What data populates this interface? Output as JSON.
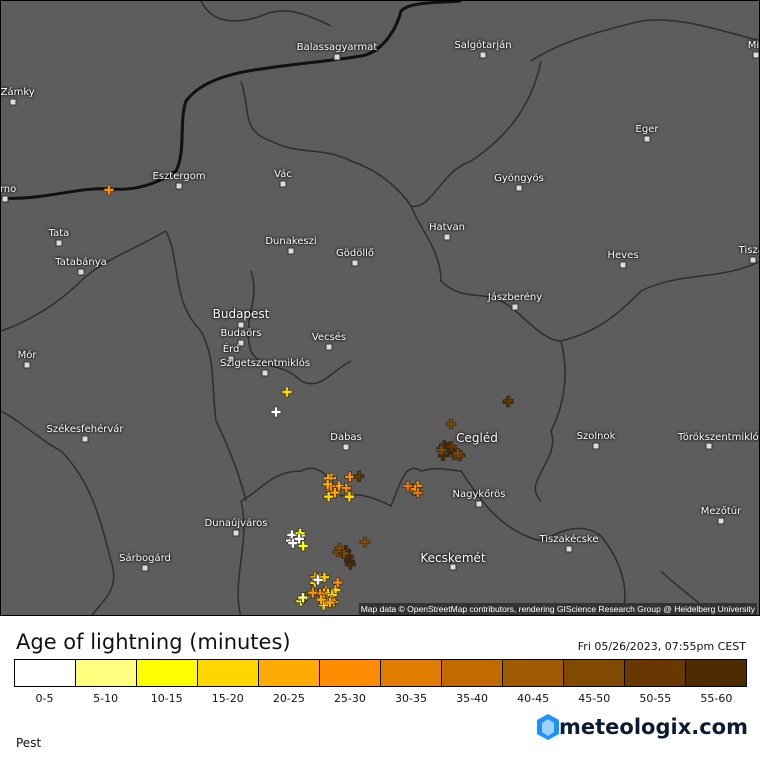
{
  "map": {
    "cities": [
      {
        "name": "Balassagyarmat",
        "big": false
      },
      {
        "name": "Salgótarján",
        "big": false
      },
      {
        "name": "Mis",
        "big": false
      },
      {
        "name": "é Zámky",
        "big": false
      },
      {
        "name": "Eger",
        "big": false
      },
      {
        "name": "Esztergom",
        "big": false
      },
      {
        "name": "Vác",
        "big": false
      },
      {
        "name": "Gyöngyös",
        "big": false
      },
      {
        "name": "árno",
        "big": false
      },
      {
        "name": "Tata",
        "big": false
      },
      {
        "name": "Dunakeszi",
        "big": false
      },
      {
        "name": "Gödöllő",
        "big": false
      },
      {
        "name": "Hatvan",
        "big": false
      },
      {
        "name": "Tatabánya",
        "big": false
      },
      {
        "name": "Heves",
        "big": false
      },
      {
        "name": "Tiszaf",
        "big": false
      },
      {
        "name": "Budapest",
        "big": true
      },
      {
        "name": "Jászberény",
        "big": false
      },
      {
        "name": "Budaörs",
        "big": false
      },
      {
        "name": "Mór",
        "big": false
      },
      {
        "name": "Érd",
        "big": false
      },
      {
        "name": "Vecsés",
        "big": false
      },
      {
        "name": "Szigetszentmiklós",
        "big": false
      },
      {
        "name": "Székesfehérvár",
        "big": false
      },
      {
        "name": "Dabas",
        "big": false
      },
      {
        "name": "Cegléd",
        "big": true
      },
      {
        "name": "Szolnok",
        "big": false
      },
      {
        "name": "Törökszentmiklós",
        "big": false
      },
      {
        "name": "Nagykőrös",
        "big": false
      },
      {
        "name": "Mezőtúr",
        "big": false
      },
      {
        "name": "Dunaújváros",
        "big": false
      },
      {
        "name": "Tiszakécske",
        "big": false
      },
      {
        "name": "Kecskemét",
        "big": true
      },
      {
        "name": "Sárbogárd",
        "big": false
      }
    ],
    "attribution": "Map data © OpenStreetMap contributors, rendering GIScience Research Group @ Heidelberg University",
    "background_color": "#5d5d5d"
  },
  "legend": {
    "title": "Age of lightning (minutes)",
    "timestamp": "Fri 05/26/2023, 07:55pm CEST",
    "bins": [
      {
        "label": "0-5",
        "color": "#ffffff"
      },
      {
        "label": "5-10",
        "color": "#ffff80"
      },
      {
        "label": "10-15",
        "color": "#ffff00"
      },
      {
        "label": "15-20",
        "color": "#ffd700"
      },
      {
        "label": "20-25",
        "color": "#ffaa00"
      },
      {
        "label": "25-30",
        "color": "#ff8c00"
      },
      {
        "label": "30-35",
        "color": "#e07c00"
      },
      {
        "label": "35-40",
        "color": "#c06a00"
      },
      {
        "label": "40-45",
        "color": "#a05a00"
      },
      {
        "label": "45-50",
        "color": "#804a00"
      },
      {
        "label": "50-55",
        "color": "#683800"
      },
      {
        "label": "55-60",
        "color": "#4e2c00"
      }
    ]
  },
  "logo": "meteologix.com",
  "region": "Pest"
}
